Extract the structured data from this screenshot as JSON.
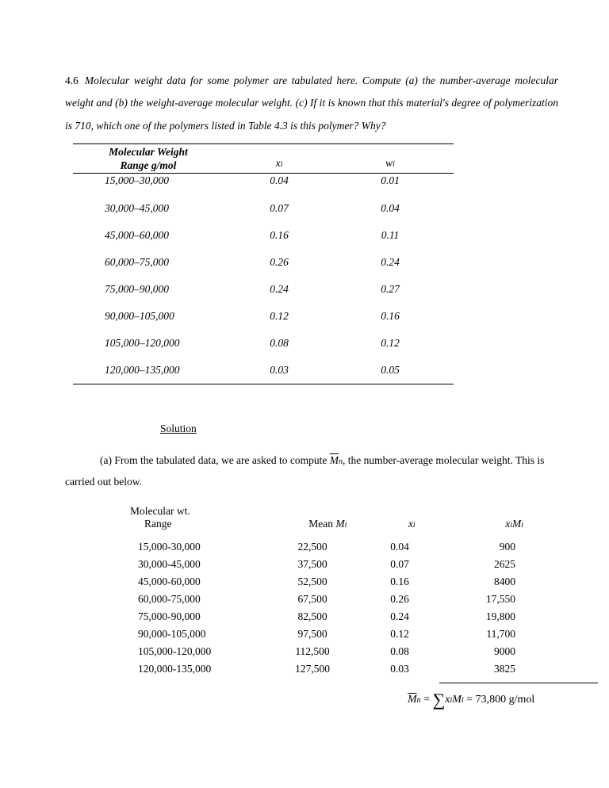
{
  "problem": {
    "number": "4.6",
    "text": "Molecular weight data for some polymer are tabulated here. Compute (a) the number-average molecular weight and (b) the weight-average molecular weight. (c) If it is known that this material's degree of polymerization is 710, which one of the polymers listed in Table 4.3 is this polymer?  Why?"
  },
  "table1": {
    "header": {
      "col1_line1": "Molecular Weight",
      "col1_line2": "Range g/mol",
      "col2": "x",
      "col2_sub": "i",
      "col3": "w",
      "col3_sub": "i"
    },
    "rows": [
      {
        "range": "15,000–30,000",
        "x": "0.04",
        "w": "0.01"
      },
      {
        "range": "30,000–45,000",
        "x": "0.07",
        "w": "0.04"
      },
      {
        "range": "45,000–60,000",
        "x": "0.16",
        "w": "0.11"
      },
      {
        "range": "60,000–75,000",
        "x": "0.26",
        "w": "0.24"
      },
      {
        "range": "75,000–90,000",
        "x": "0.24",
        "w": "0.27"
      },
      {
        "range": "90,000–105,000",
        "x": "0.12",
        "w": "0.16"
      },
      {
        "range": "105,000–120,000",
        "x": "0.08",
        "w": "0.12"
      },
      {
        "range": "120,000–135,000",
        "x": "0.03",
        "w": "0.05"
      }
    ]
  },
  "solution": {
    "header": "Solution",
    "para_a_pre": "(a)  From the tabulated data, we are asked to compute ",
    "para_a_sym_main": "M",
    "para_a_sym_sub": "n",
    "para_a_post": ", the number-average molecular weight.  This is carried out below."
  },
  "table2": {
    "header": {
      "col1_line1": "Molecular wt.",
      "col1_line2": "Range",
      "col2_pre": "Mean ",
      "col2_main": "M",
      "col2_sub": "i",
      "col3_main": "x",
      "col3_sub": "i",
      "col4_a": "x",
      "col4_a_sub": "i",
      "col4_b": "M",
      "col4_b_sub": "i"
    },
    "rows": [
      {
        "range": "15,000-30,000",
        "mean": "22,500",
        "x": "0.04",
        "xm": "900"
      },
      {
        "range": "30,000-45,000",
        "mean": "37,500",
        "x": "0.07",
        "xm": "2625"
      },
      {
        "range": "45,000-60,000",
        "mean": "52,500",
        "x": "0.16",
        "xm": "8400"
      },
      {
        "range": "60,000-75,000",
        "mean": "67,500",
        "x": "0.26",
        "xm": "17,550"
      },
      {
        "range": "75,000-90,000",
        "mean": "82,500",
        "x": "0.24",
        "xm": "19,800"
      },
      {
        "range": "90,000-105,000",
        "mean": "97,500",
        "x": "0.12",
        "xm": "11,700"
      },
      {
        "range": "105,000-120,000",
        "mean": "112,500",
        "x": "0.08",
        "xm": "9000"
      },
      {
        "range": "120,000-135,000",
        "mean": "127,500",
        "x": "0.03",
        "xm": "3825"
      }
    ]
  },
  "result": {
    "lhs_main": "M",
    "lhs_sub": "n",
    "eq": " = ",
    "sigma": "∑",
    "x": "x",
    "x_sub": "i",
    "M": "M",
    "M_sub": "i",
    "val": " = 73,800 g/mol"
  }
}
